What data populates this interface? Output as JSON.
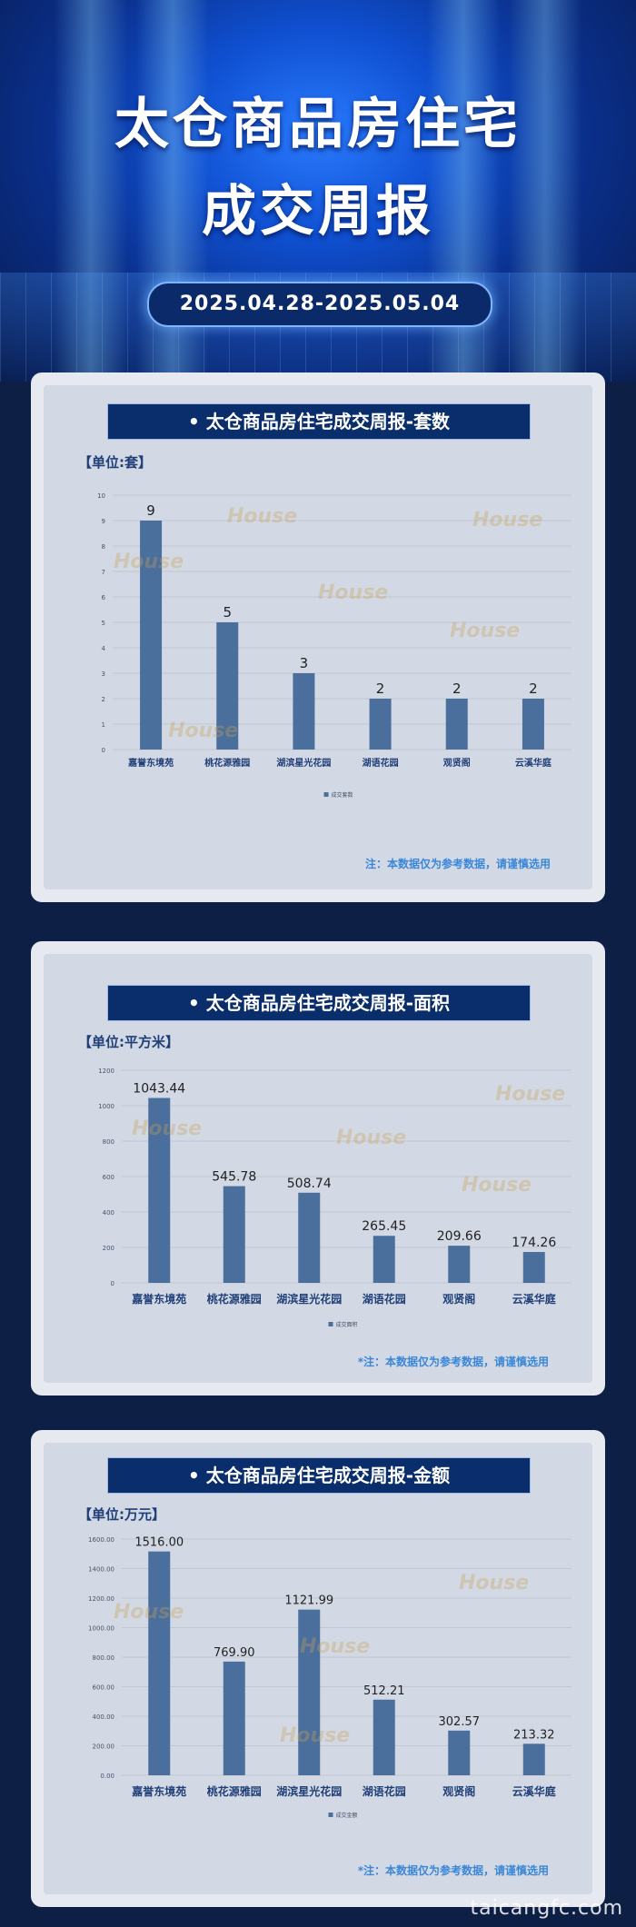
{
  "hero": {
    "title_line1": "太仓商品房住宅",
    "title_line2": "成交周报",
    "date_range": "2025.04.28-2025.05.04"
  },
  "watermark": "House",
  "footer": {
    "site": "taicangfc.com"
  },
  "sections": [
    {
      "header": "• 太仓商品房住宅成交周报-套数",
      "unit": "【单位:套】",
      "note": "注：本数据仅为参考数据，请谨慎选用",
      "legend": "成交套数"
    },
    {
      "header": "• 太仓商品房住宅成交周报-面积",
      "unit": "【单位:平方米】",
      "note": "*注：本数据仅为参考数据，请谨慎选用",
      "legend": "成交面积"
    },
    {
      "header": "• 太仓商品房住宅成交周报-金额",
      "unit": "【单位:万元】",
      "note": "*注：本数据仅为参考数据，请谨慎选用",
      "legend": "成交金额"
    }
  ],
  "chart_data": [
    {
      "type": "bar",
      "categories": [
        "嘉誉东境苑",
        "桃花源雅园",
        "湖滨星光花园",
        "湖语花园",
        "观贤阁",
        "云溪华庭"
      ],
      "values": [
        9,
        5,
        3,
        2,
        2,
        2
      ],
      "value_labels": [
        "9",
        "5",
        "3",
        "2",
        "2",
        "2"
      ],
      "ylim": [
        0,
        10
      ],
      "yticks": [
        "0",
        "1",
        "2",
        "3",
        "4",
        "5",
        "6",
        "7",
        "8",
        "9",
        "10"
      ],
      "grid": true,
      "legend": "bottom",
      "color": "#4a6f9c"
    },
    {
      "type": "bar",
      "categories": [
        "嘉誉东境苑",
        "桃花源雅园",
        "湖滨星光花园",
        "湖语花园",
        "观贤阁",
        "云溪华庭"
      ],
      "values": [
        1043.44,
        545.78,
        508.74,
        265.45,
        209.66,
        174.26
      ],
      "value_labels": [
        "1043.44",
        "545.78",
        "508.74",
        "265.45",
        "209.66",
        "174.26"
      ],
      "ylim": [
        0,
        1200
      ],
      "yticks": [
        "0",
        "200",
        "400",
        "600",
        "800",
        "1000",
        "1200"
      ],
      "grid": true,
      "legend": "bottom",
      "color": "#4a6f9c"
    },
    {
      "type": "bar",
      "categories": [
        "嘉誉东境苑",
        "桃花源雅园",
        "湖滨星光花园",
        "湖语花园",
        "观贤阁",
        "云溪华庭"
      ],
      "values": [
        1516.0,
        769.9,
        1121.99,
        512.21,
        302.57,
        213.32
      ],
      "value_labels": [
        "1516.00",
        "769.90",
        "1121.99",
        "512.21",
        "302.57",
        "213.32"
      ],
      "ylim": [
        0,
        1600
      ],
      "yticks": [
        "0.00",
        "200.00",
        "400.00",
        "600.00",
        "800.00",
        "1000.00",
        "1200.00",
        "1400.00",
        "1600.00"
      ],
      "grid": true,
      "legend": "bottom",
      "color": "#4a6f9c"
    }
  ]
}
